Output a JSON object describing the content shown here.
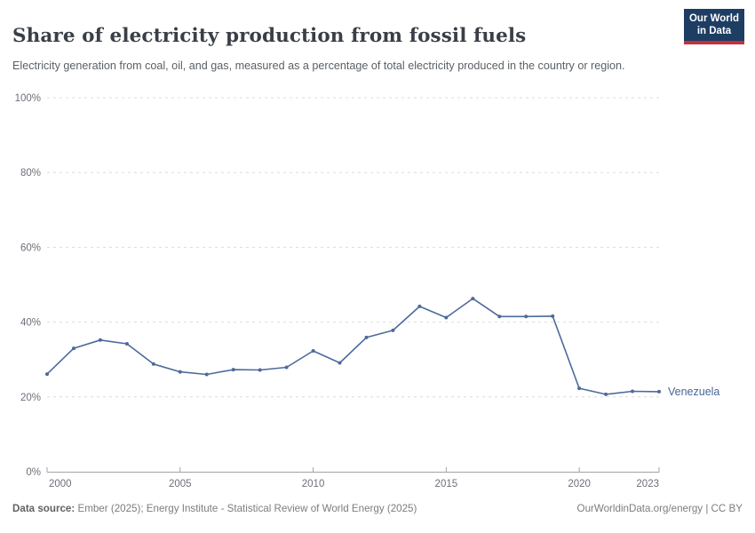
{
  "header": {
    "title": "Share of electricity production from fossil fuels",
    "subtitle": "Electricity generation from coal, oil, and gas, measured as a percentage of total electricity produced in the country or region.",
    "logo": {
      "line1": "Our World",
      "line2": "in Data"
    }
  },
  "chart_data": {
    "type": "line",
    "title": "Share of electricity production from fossil fuels",
    "x": [
      2000,
      2001,
      2002,
      2003,
      2004,
      2005,
      2006,
      2007,
      2008,
      2009,
      2010,
      2011,
      2012,
      2013,
      2014,
      2015,
      2016,
      2017,
      2018,
      2019,
      2020,
      2021,
      2022,
      2023
    ],
    "series": [
      {
        "name": "Venezuela",
        "color": "#4c6a9c",
        "values": [
          26.1,
          33.0,
          35.2,
          34.2,
          28.8,
          26.7,
          26.0,
          27.3,
          27.2,
          27.9,
          32.3,
          29.1,
          35.9,
          37.8,
          44.2,
          41.2,
          46.3,
          41.5,
          41.5,
          41.6,
          22.3,
          20.7,
          21.5,
          21.4
        ]
      }
    ],
    "xlabel": "",
    "ylabel": "",
    "ylim": [
      0,
      100
    ],
    "yticks": [
      0,
      20,
      40,
      60,
      80,
      100
    ],
    "ytick_suffix": "%",
    "xticks": [
      2000,
      2005,
      2010,
      2015,
      2020,
      2023
    ],
    "grid": "horizontal-dashed",
    "legend_position": "end-of-line"
  },
  "style": {
    "line_color": "#4c6a9c",
    "entity_label_color": "#46659b",
    "grid_color": "#dcdcdc",
    "axis_color": "#a3a3a3",
    "tick_label_color": "#6e7079"
  },
  "footer": {
    "source_label": "Data source:",
    "source_text": "Ember (2025); Energy Institute - Statistical Review of World Energy (2025)",
    "rights": "OurWorldinData.org/energy | CC BY"
  }
}
